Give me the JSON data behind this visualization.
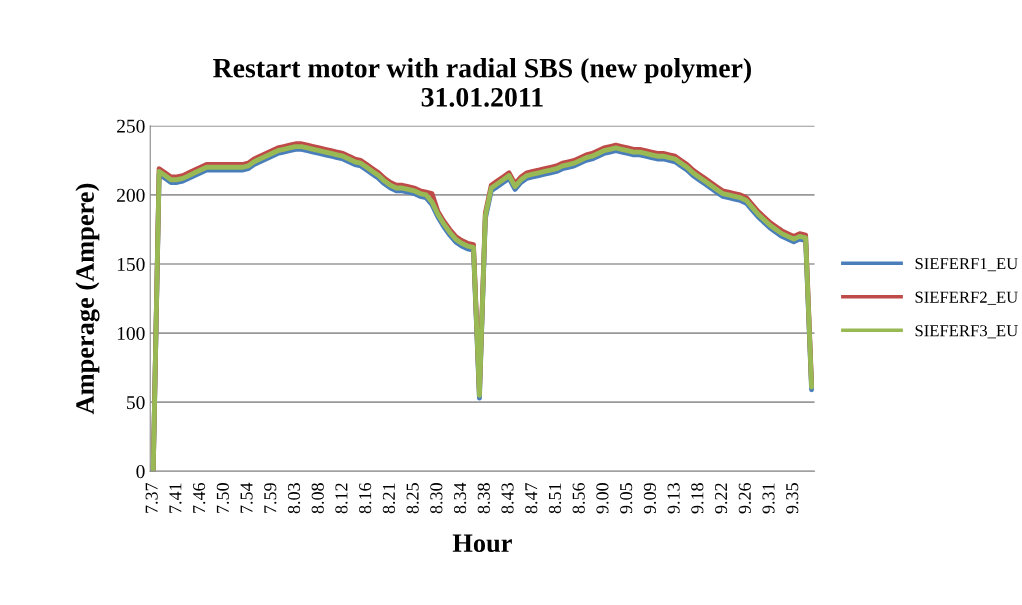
{
  "chart_data": {
    "type": "line",
    "title": "Restart motor with radial SBS (new polymer)\n31.01.2011",
    "xlabel": "Hour",
    "ylabel": "Amperage (Ampere)",
    "categories": [
      "7.37",
      null,
      null,
      null,
      "7.41",
      null,
      null,
      null,
      "7.46",
      null,
      null,
      null,
      "7.50",
      null,
      null,
      null,
      "7.54",
      null,
      null,
      null,
      "7.59",
      null,
      null,
      null,
      "8.03",
      null,
      null,
      null,
      "8.08",
      null,
      null,
      null,
      "8.12",
      null,
      null,
      null,
      "8.16",
      null,
      null,
      null,
      "8.21",
      null,
      null,
      null,
      "8.25",
      null,
      null,
      null,
      "8.30",
      null,
      null,
      null,
      "8.34",
      null,
      null,
      null,
      "8.38",
      null,
      null,
      null,
      "8.43",
      null,
      null,
      null,
      "8.47",
      null,
      null,
      null,
      "8.51",
      null,
      null,
      null,
      "8.56",
      null,
      null,
      null,
      "9.00",
      null,
      null,
      null,
      "9.05",
      null,
      null,
      null,
      "9.09",
      null,
      null,
      null,
      "9.13",
      null,
      null,
      null,
      "9.18",
      null,
      null,
      null,
      "9.22",
      null,
      null,
      null,
      "9.26",
      null,
      null,
      null,
      "9.31",
      null,
      null,
      null,
      "9.35",
      null,
      null,
      null
    ],
    "series": [
      {
        "name": "SIEFERF1_EU",
        "color": "#4a7ebb",
        "values": [
          0,
          215,
          212,
          209,
          209,
          210,
          212,
          214,
          216,
          218,
          218,
          218,
          218,
          218,
          218,
          218,
          219,
          222,
          224,
          226,
          228,
          230,
          231,
          232,
          233,
          233,
          232,
          231,
          230,
          229,
          228,
          227,
          226,
          224,
          222,
          221,
          218,
          215,
          212,
          208,
          205,
          203,
          203,
          202,
          201,
          199,
          198,
          193,
          184,
          177,
          171,
          166,
          163,
          161,
          160,
          53,
          183,
          203,
          206,
          209,
          212,
          204,
          209,
          212,
          213,
          214,
          215,
          216,
          217,
          219,
          220,
          221,
          223,
          225,
          226,
          228,
          230,
          231,
          232,
          231,
          230,
          229,
          229,
          228,
          227,
          226,
          226,
          225,
          224,
          221,
          218,
          214,
          211,
          208,
          205,
          202,
          199,
          198,
          197,
          196,
          194,
          189,
          184,
          180,
          176,
          173,
          170,
          168,
          166,
          168,
          167,
          59
        ]
      },
      {
        "name": "SIEFERF2_EU",
        "color": "#be4b48",
        "values": [
          0,
          219,
          216,
          213,
          213,
          214,
          216,
          218,
          220,
          222,
          222,
          222,
          222,
          222,
          222,
          222,
          223,
          226,
          228,
          230,
          232,
          234,
          235,
          236,
          237,
          237,
          236,
          235,
          234,
          233,
          232,
          231,
          230,
          228,
          226,
          225,
          222,
          219,
          216,
          212,
          209,
          207,
          207,
          206,
          205,
          203,
          202,
          201,
          188,
          181,
          175,
          170,
          167,
          165,
          164,
          57,
          187,
          207,
          210,
          213,
          216,
          208,
          213,
          216,
          217,
          218,
          219,
          220,
          221,
          223,
          224,
          225,
          227,
          229,
          230,
          232,
          234,
          235,
          236,
          235,
          234,
          233,
          233,
          232,
          231,
          230,
          230,
          229,
          228,
          225,
          222,
          218,
          215,
          212,
          209,
          206,
          203,
          202,
          201,
          200,
          198,
          193,
          188,
          184,
          180,
          177,
          174,
          172,
          170,
          172,
          171,
          63
        ]
      },
      {
        "name": "SIEFERF3_EU",
        "color": "#98b954",
        "values": [
          0,
          217,
          214,
          211,
          211,
          212,
          214,
          216,
          218,
          220,
          220,
          220,
          220,
          220,
          220,
          220,
          221,
          224,
          226,
          228,
          230,
          232,
          233,
          234,
          235,
          235,
          234,
          233,
          232,
          231,
          230,
          229,
          228,
          226,
          224,
          223,
          220,
          217,
          214,
          210,
          207,
          205,
          205,
          204,
          203,
          201,
          200,
          195,
          186,
          179,
          173,
          168,
          165,
          163,
          162,
          55,
          185,
          205,
          208,
          211,
          214,
          206,
          211,
          214,
          215,
          216,
          217,
          218,
          219,
          221,
          222,
          223,
          225,
          227,
          228,
          230,
          232,
          233,
          234,
          233,
          232,
          231,
          231,
          230,
          229,
          228,
          228,
          227,
          226,
          223,
          220,
          216,
          213,
          210,
          207,
          204,
          201,
          200,
          199,
          198,
          196,
          191,
          186,
          182,
          178,
          175,
          172,
          170,
          168,
          170,
          169,
          61
        ]
      }
    ],
    "ylim": [
      0,
      250
    ],
    "yticks": [
      0,
      50,
      100,
      150,
      200,
      250
    ],
    "grid": "y",
    "legend": "right",
    "marker": "none",
    "line_style": "solid"
  }
}
